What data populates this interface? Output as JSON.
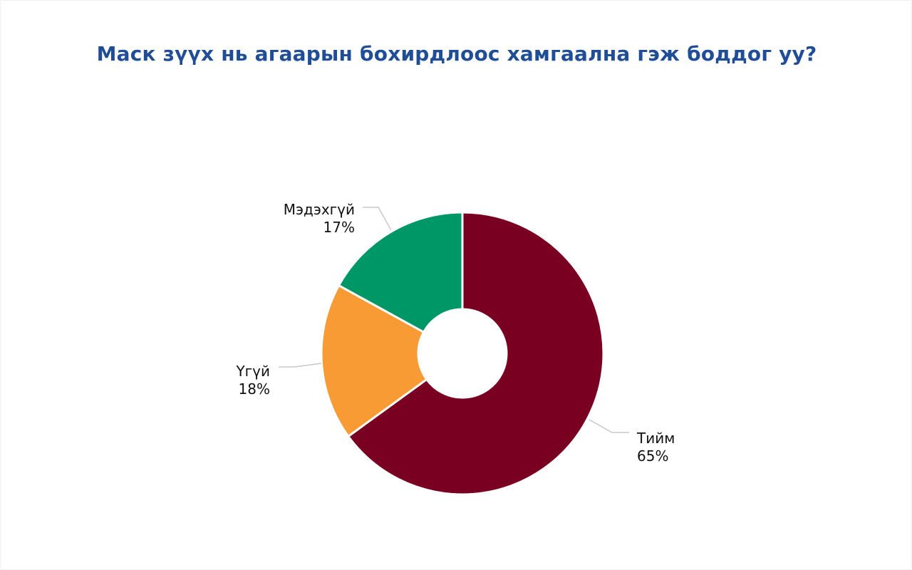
{
  "chart_data": {
    "type": "pie",
    "variant": "donut",
    "title": "Маск зүүх нь агаарын бохирдлоос хамгаална гэж боддог уу?",
    "slices": [
      {
        "label": "Тийм",
        "value": 65,
        "value_label": "65%",
        "color": "#7a0022"
      },
      {
        "label": "Үгүй",
        "value": 18,
        "value_label": "18%",
        "color": "#f99b35"
      },
      {
        "label": "Мэдэхгүй",
        "value": 17,
        "value_label": "17%",
        "color": "#009767"
      }
    ],
    "legend": "none",
    "data_labels": "outside with leader lines"
  },
  "colors": {
    "title": "#1f4e96",
    "leader_line": "#c8c8c8",
    "slice_border": "#ffffff"
  }
}
